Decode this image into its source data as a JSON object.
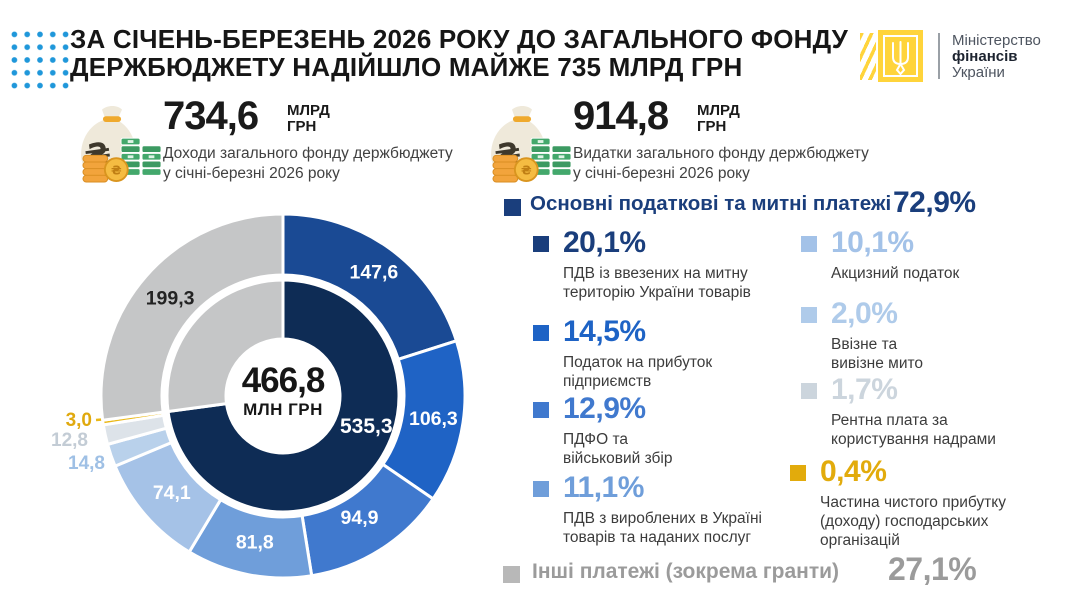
{
  "header": {
    "title_line1": "ЗА СІЧЕНЬ-БЕРЕЗЕНЬ 2026 РОКУ ДО ЗАГАЛЬНОГО ФОНДУ",
    "title_line2": "ДЕРЖБЮДЖЕТУ НАДІЙШЛО МАЙЖЕ 735 МЛРД ГРН"
  },
  "logo": {
    "line1": "Міністерство",
    "line2": "фінансів",
    "line3": "України",
    "emblem_color": "#ffd43b"
  },
  "stats": [
    {
      "value": "734,6",
      "unit_line1": "МЛРД",
      "unit_line2": "ГРН",
      "caption_line1": "Доходи загального фонду держбюджету",
      "caption_line2": "у січні-березні 2026 року"
    },
    {
      "value": "914,8",
      "unit_line1": "МЛРД",
      "unit_line2": "ГРН",
      "caption_line1": "Видатки загального фонду держбюджету",
      "caption_line2": "у січні-березні 2026 року"
    }
  ],
  "chart_data": {
    "type": "donut",
    "unit": "млрд грн",
    "center": {
      "value": "466,8",
      "unit": "МЛН ГРН"
    },
    "outer_ring": [
      {
        "name": "ПДВ із ввезених на митну територію України товарів",
        "label": "147,6",
        "value": 147.6,
        "percent": "20,1%",
        "color": "#1a4a94"
      },
      {
        "name": "Податок на прибуток підприємств",
        "label": "106,3",
        "value": 106.3,
        "percent": "14,5%",
        "color": "#1f63c5"
      },
      {
        "name": "ПДФО та військовий збір",
        "label": "94,9",
        "value": 94.9,
        "percent": "12,9%",
        "color": "#4079ce"
      },
      {
        "name": "ПДВ з вироблених в Україні товарів та наданих послуг",
        "label": "81,8",
        "value": 81.8,
        "percent": "11,1%",
        "color": "#6f9eda"
      },
      {
        "name": "Акцизний податок",
        "label": "74,1",
        "value": 74.1,
        "percent": "10,1%",
        "color": "#a5c2e7"
      },
      {
        "name": "Ввізне та вивізне мито",
        "label": "14,8",
        "value": 14.8,
        "percent": "2,0%",
        "color": "#b9d1eb"
      },
      {
        "name": "Рентна плата за користування надрами",
        "label": "12,8",
        "value": 12.8,
        "percent": "1,7%",
        "color": "#dde3e9"
      },
      {
        "name": "Частина чистого прибутку (доходу) господарських організацій",
        "label": "3,0",
        "value": 3.0,
        "percent": "0,4%",
        "color": "#eab817"
      },
      {
        "name": "Інші платежі (зокрема гранти)",
        "label": "199,3",
        "value": 199.3,
        "percent": "27,1%",
        "color": "#c5c6c7"
      }
    ],
    "inner_ring": [
      {
        "name": "Основні податкові та митні платежі",
        "label": "535,3",
        "value": 535.3,
        "percent": "72,9%",
        "color": "#0e2c55"
      },
      {
        "name": "Інші платежі (зокрема гранти)",
        "label": "",
        "value": 199.3,
        "percent": "27,1%",
        "color": "#c5c6c7"
      }
    ]
  },
  "legend": {
    "header": {
      "label": "Основні податкові та митні платежі",
      "percent": "72,9%",
      "color": "#1a3e7c"
    },
    "items": [
      {
        "percent": "20,1%",
        "color": "#1a3e7c",
        "caption": [
          "ПДВ із ввезених на митну",
          "територію України товарів"
        ]
      },
      {
        "percent": "14,5%",
        "color": "#1e63c5",
        "caption": [
          "Податок на прибуток",
          "підприємств"
        ]
      },
      {
        "percent": "12,9%",
        "color": "#4079ce",
        "caption": [
          "ПДФО та",
          "військовий збір"
        ]
      },
      {
        "percent": "11,1%",
        "color": "#6f9eda",
        "caption": [
          "ПДВ з вироблених в Україні",
          "товарів та наданих послуг"
        ]
      },
      {
        "percent": "10,1%",
        "color": "#a3c2e8",
        "caption": [
          "Акцизний податок"
        ]
      },
      {
        "percent": "2,0%",
        "color": "#afcbea",
        "caption": [
          "Ввізне та",
          "вивізне мито"
        ]
      },
      {
        "percent": "1,7%",
        "color": "#ccd5dd",
        "caption": [
          "Рентна плата за",
          "користування надрами"
        ]
      },
      {
        "percent": "0,4%",
        "color": "#e2ab0c",
        "caption": [
          "Частина чистого прибутку",
          "(доходу) господарських",
          "організацій"
        ]
      }
    ],
    "other": {
      "label": "Інші платежі (зокрема гранти)",
      "percent": "27,1%",
      "color": "#9b9b9b"
    }
  }
}
